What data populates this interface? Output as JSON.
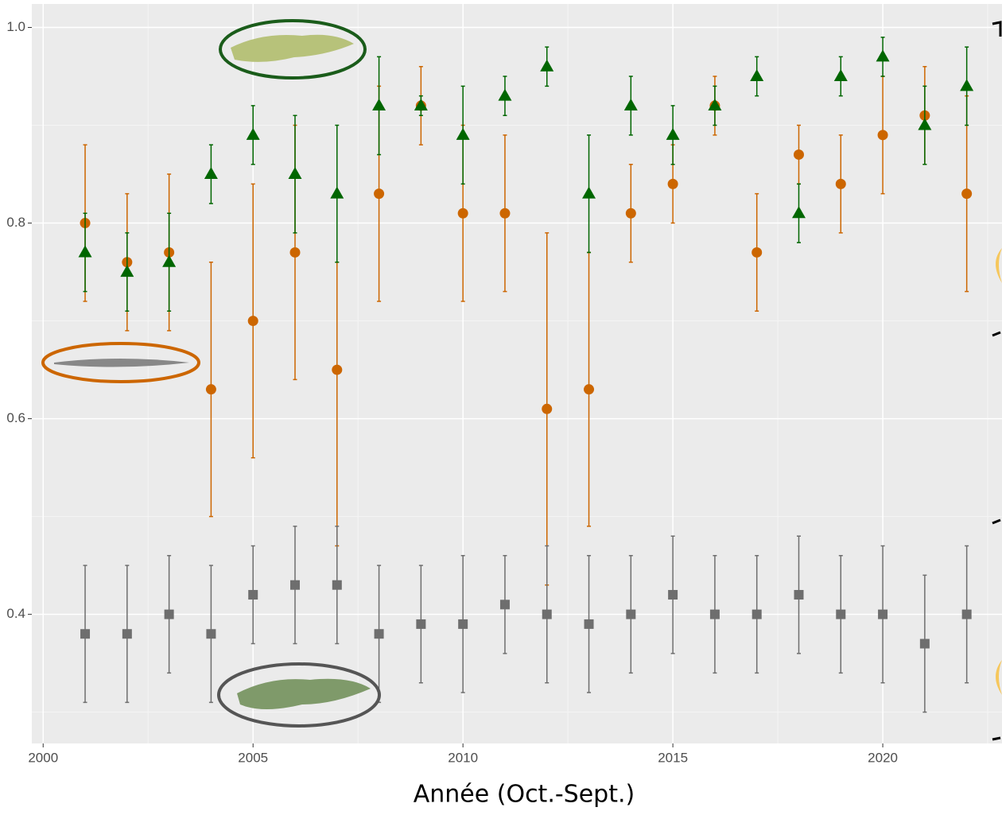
{
  "chart_data": {
    "type": "scatter",
    "x_label": "Année (Oct.-Sept.)",
    "x": [
      2001,
      2002,
      2003,
      2004,
      2005,
      2006,
      2007,
      2008,
      2009,
      2010,
      2011,
      2012,
      2013,
      2014,
      2015,
      2016,
      2017,
      2018,
      2019,
      2020,
      2021,
      2022
    ],
    "series": [
      {
        "color": "#cc6600",
        "marker": "circle",
        "values": [
          0.8,
          0.76,
          0.77,
          0.63,
          0.7,
          0.77,
          0.65,
          0.83,
          0.92,
          0.81,
          0.81,
          0.61,
          0.63,
          0.81,
          0.84,
          0.92,
          0.77,
          0.87,
          0.84,
          0.89,
          0.91,
          0.83
        ],
        "lower": [
          0.72,
          0.69,
          0.69,
          0.5,
          0.56,
          0.64,
          0.47,
          0.72,
          0.88,
          0.72,
          0.73,
          0.43,
          0.49,
          0.76,
          0.8,
          0.89,
          0.71,
          0.84,
          0.79,
          0.83,
          0.86,
          0.73
        ],
        "upper": [
          0.88,
          0.83,
          0.85,
          0.76,
          0.84,
          0.9,
          0.76,
          0.94,
          0.96,
          0.9,
          0.89,
          0.79,
          0.77,
          0.86,
          0.88,
          0.95,
          0.83,
          0.9,
          0.89,
          0.95,
          0.96,
          0.93
        ]
      },
      {
        "color": "#006600",
        "marker": "triangle",
        "values": [
          0.77,
          0.75,
          0.76,
          0.85,
          0.89,
          0.85,
          0.83,
          0.92,
          0.92,
          0.89,
          0.93,
          0.96,
          0.83,
          0.92,
          0.89,
          0.92,
          0.95,
          0.81,
          0.95,
          0.97,
          0.9,
          0.94
        ],
        "lower": [
          0.73,
          0.71,
          0.71,
          0.82,
          0.86,
          0.79,
          0.76,
          0.87,
          0.91,
          0.84,
          0.91,
          0.94,
          0.77,
          0.89,
          0.86,
          0.9,
          0.93,
          0.78,
          0.93,
          0.95,
          0.86,
          0.9
        ],
        "upper": [
          0.81,
          0.79,
          0.81,
          0.88,
          0.92,
          0.91,
          0.9,
          0.97,
          0.93,
          0.94,
          0.95,
          0.98,
          0.89,
          0.95,
          0.92,
          0.94,
          0.97,
          0.84,
          0.97,
          0.99,
          0.94,
          0.98
        ]
      },
      {
        "color": "#6e6e6e",
        "marker": "square",
        "values": [
          0.38,
          0.38,
          0.4,
          0.38,
          0.42,
          0.43,
          0.43,
          0.38,
          0.39,
          0.39,
          0.41,
          0.4,
          0.39,
          0.4,
          0.42,
          0.4,
          0.4,
          0.42,
          0.4,
          0.4,
          0.37,
          0.4
        ],
        "lower": [
          0.31,
          0.31,
          0.34,
          0.31,
          0.37,
          0.37,
          0.37,
          0.31,
          0.33,
          0.32,
          0.36,
          0.33,
          0.32,
          0.34,
          0.36,
          0.34,
          0.34,
          0.36,
          0.34,
          0.33,
          0.3,
          0.33
        ],
        "upper": [
          0.45,
          0.45,
          0.46,
          0.45,
          0.47,
          0.49,
          0.49,
          0.45,
          0.45,
          0.46,
          0.46,
          0.47,
          0.46,
          0.46,
          0.48,
          0.46,
          0.46,
          0.48,
          0.46,
          0.47,
          0.44,
          0.47
        ]
      }
    ],
    "xlim": [
      1999.73,
      2022.84
    ],
    "xticks": [
      2000,
      2005,
      2010,
      2015,
      2020
    ],
    "ylim": [
      0.268,
      1.024
    ],
    "yticks": [
      0.4,
      0.6,
      0.8,
      {
        "value": 1,
        "label": "1.0"
      }
    ],
    "grid": true
  }
}
